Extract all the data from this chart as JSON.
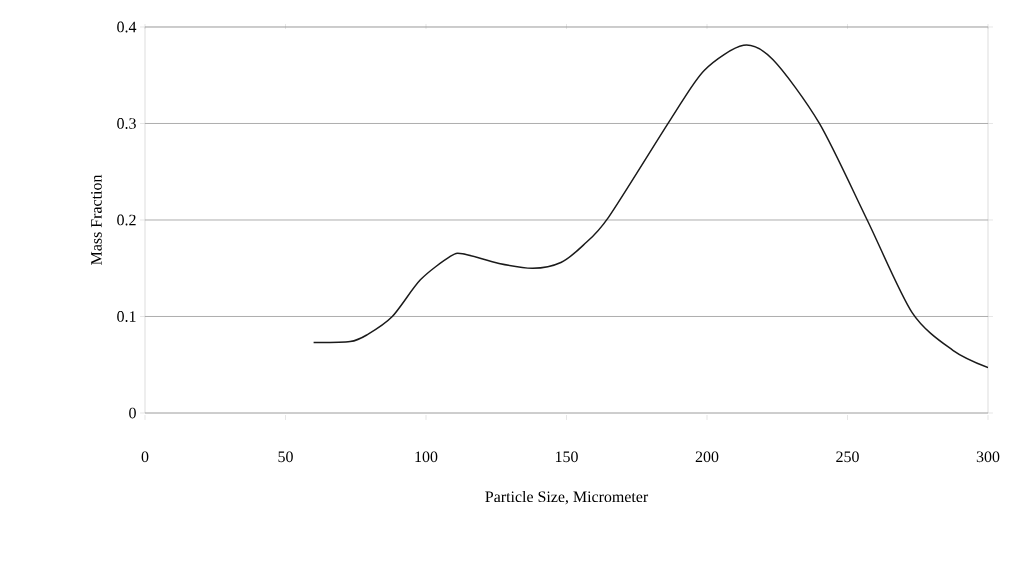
{
  "chart_data": {
    "type": "line",
    "xlabel": "Particle Size, Micrometer",
    "ylabel": "Mass Fraction",
    "x": [
      60,
      73,
      79,
      88,
      98,
      108.5,
      113,
      126,
      138,
      148,
      156,
      165,
      187,
      199,
      213,
      223.5,
      240,
      257,
      273,
      287.5,
      300
    ],
    "series": [
      {
        "color": "#1a1a1a",
        "values": [
          0.073,
          0.074,
          0.081,
          0.1,
          0.138,
          0.162,
          0.165,
          0.155,
          0.15,
          0.156,
          0.174,
          0.203,
          0.304,
          0.355,
          0.381,
          0.366,
          0.3,
          0.2,
          0.104,
          0.065,
          0.047
        ]
      }
    ],
    "xlim": [
      0,
      300
    ],
    "ylim": [
      0,
      0.4
    ],
    "xticks": [
      0,
      50,
      100,
      150,
      200,
      250,
      300
    ],
    "yticks": [
      {
        "value": 0,
        "label": "0"
      },
      {
        "value": 0.1,
        "label": "0.1"
      },
      {
        "value": 0.2,
        "label": "0.2"
      },
      {
        "value": 0.3,
        "label": "0.3"
      },
      {
        "value": 0.4,
        "label": "0.4"
      }
    ],
    "grid": "y",
    "marker": "none",
    "line_style": "solid"
  }
}
